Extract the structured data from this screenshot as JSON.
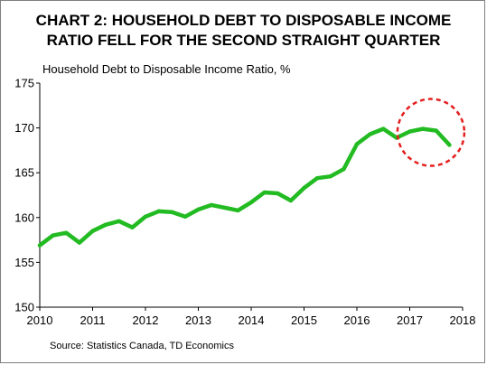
{
  "chart_data": {
    "type": "line",
    "title": "CHART 2: HOUSEHOLD DEBT TO DISPOSABLE INCOME\nRATIO FELL FOR THE SECOND STRAIGHT QUARTER",
    "ylabel": "Household Debt to Disposable Income Ratio, %",
    "xlabel": "",
    "source": "Source: Statistics Canada, TD Economics",
    "xlim": [
      2010,
      2018
    ],
    "ylim": [
      150,
      175
    ],
    "x_ticks": [
      2010,
      2011,
      2012,
      2013,
      2014,
      2015,
      2016,
      2017,
      2018
    ],
    "y_ticks": [
      150,
      155,
      160,
      165,
      170,
      175
    ],
    "grid": false,
    "line_color": "#22bb22",
    "highlight_color": "#e41e1e",
    "highlight": {
      "x": 2017.4,
      "y": 169.5,
      "description": "dashed circle around latest data points"
    },
    "series": [
      {
        "x": [
          2010.0,
          2010.25,
          2010.5,
          2010.75,
          2011.0,
          2011.25,
          2011.5,
          2011.75,
          2012.0,
          2012.25,
          2012.5,
          2012.75,
          2013.0,
          2013.25,
          2013.5,
          2013.75,
          2014.0,
          2014.25,
          2014.5,
          2014.75,
          2015.0,
          2015.25,
          2015.5,
          2015.75,
          2016.0,
          2016.25,
          2016.5,
          2016.75,
          2017.0,
          2017.25,
          2017.5,
          2017.75
        ],
        "values": [
          156.9,
          158.0,
          158.3,
          157.2,
          158.5,
          159.2,
          159.6,
          158.9,
          160.1,
          160.7,
          160.6,
          160.1,
          160.9,
          161.4,
          161.1,
          160.8,
          161.7,
          162.8,
          162.7,
          161.9,
          163.3,
          164.4,
          164.6,
          165.4,
          168.2,
          169.3,
          169.9,
          168.9,
          169.6,
          169.9,
          169.7,
          168.1
        ]
      }
    ]
  }
}
